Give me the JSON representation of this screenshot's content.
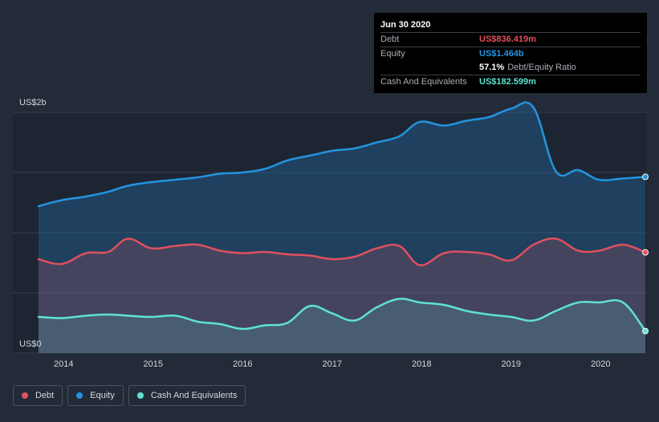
{
  "chart_data": {
    "type": "area",
    "y_unit_labels": {
      "top": "US$2b",
      "bottom": "US$0"
    },
    "ylim": [
      0,
      2000
    ],
    "xlim": [
      2013.72,
      2020.5
    ],
    "x_ticks": [
      2014,
      2015,
      2016,
      2017,
      2018,
      2019,
      2020
    ],
    "series": [
      {
        "name": "Debt",
        "color": "#e0505e",
        "points": [
          [
            2013.72,
            780
          ],
          [
            2013.98,
            740
          ],
          [
            2014.25,
            830
          ],
          [
            2014.5,
            840
          ],
          [
            2014.72,
            950
          ],
          [
            2014.98,
            870
          ],
          [
            2015.25,
            890
          ],
          [
            2015.5,
            900
          ],
          [
            2015.75,
            850
          ],
          [
            2016.0,
            830
          ],
          [
            2016.25,
            840
          ],
          [
            2016.5,
            820
          ],
          [
            2016.75,
            810
          ],
          [
            2017.0,
            780
          ],
          [
            2017.25,
            800
          ],
          [
            2017.5,
            870
          ],
          [
            2017.75,
            890
          ],
          [
            2017.98,
            730
          ],
          [
            2018.25,
            830
          ],
          [
            2018.5,
            840
          ],
          [
            2018.75,
            820
          ],
          [
            2019.0,
            770
          ],
          [
            2019.25,
            900
          ],
          [
            2019.5,
            950
          ],
          [
            2019.75,
            850
          ],
          [
            2019.98,
            850
          ],
          [
            2020.25,
            900
          ],
          [
            2020.5,
            836.419
          ]
        ]
      },
      {
        "name": "Equity",
        "color": "#2394df",
        "points": [
          [
            2013.72,
            1220
          ],
          [
            2013.98,
            1270
          ],
          [
            2014.25,
            1300
          ],
          [
            2014.5,
            1340
          ],
          [
            2014.72,
            1390
          ],
          [
            2014.98,
            1420
          ],
          [
            2015.25,
            1440
          ],
          [
            2015.5,
            1460
          ],
          [
            2015.75,
            1490
          ],
          [
            2016.0,
            1500
          ],
          [
            2016.25,
            1530
          ],
          [
            2016.5,
            1600
          ],
          [
            2016.75,
            1640
          ],
          [
            2017.0,
            1680
          ],
          [
            2017.25,
            1700
          ],
          [
            2017.5,
            1750
          ],
          [
            2017.75,
            1800
          ],
          [
            2017.98,
            1920
          ],
          [
            2018.25,
            1890
          ],
          [
            2018.5,
            1930
          ],
          [
            2018.75,
            1960
          ],
          [
            2019.0,
            2030
          ],
          [
            2019.25,
            2040
          ],
          [
            2019.5,
            1510
          ],
          [
            2019.75,
            1520
          ],
          [
            2019.98,
            1440
          ],
          [
            2020.25,
            1450
          ],
          [
            2020.5,
            1464
          ]
        ]
      },
      {
        "name": "Cash And Equivalents",
        "color": "#5ee3d1",
        "points": [
          [
            2013.72,
            300
          ],
          [
            2013.98,
            290
          ],
          [
            2014.25,
            310
          ],
          [
            2014.5,
            320
          ],
          [
            2014.72,
            310
          ],
          [
            2014.98,
            300
          ],
          [
            2015.25,
            310
          ],
          [
            2015.5,
            260
          ],
          [
            2015.75,
            240
          ],
          [
            2016.0,
            200
          ],
          [
            2016.25,
            230
          ],
          [
            2016.5,
            250
          ],
          [
            2016.75,
            390
          ],
          [
            2017.0,
            330
          ],
          [
            2017.25,
            270
          ],
          [
            2017.5,
            380
          ],
          [
            2017.75,
            450
          ],
          [
            2017.98,
            420
          ],
          [
            2018.25,
            400
          ],
          [
            2018.5,
            350
          ],
          [
            2018.75,
            320
          ],
          [
            2019.0,
            300
          ],
          [
            2019.25,
            270
          ],
          [
            2019.5,
            350
          ],
          [
            2019.75,
            420
          ],
          [
            2019.98,
            420
          ],
          [
            2020.25,
            420
          ],
          [
            2020.5,
            182.599
          ]
        ]
      }
    ]
  },
  "tooltip": {
    "date": "Jun 30 2020",
    "debt_label": "Debt",
    "debt_value": "US$836.419m",
    "equity_label": "Equity",
    "equity_value": "US$1.464b",
    "ratio_value": "57.1%",
    "ratio_label": "Debt/Equity Ratio",
    "cash_label": "Cash And Equivalents",
    "cash_value": "US$182.599m"
  },
  "legend": {
    "items": [
      {
        "label": "Debt",
        "color": "#e0505e"
      },
      {
        "label": "Equity",
        "color": "#2394df"
      },
      {
        "label": "Cash And Equivalents",
        "color": "#5ee3d1"
      }
    ]
  }
}
